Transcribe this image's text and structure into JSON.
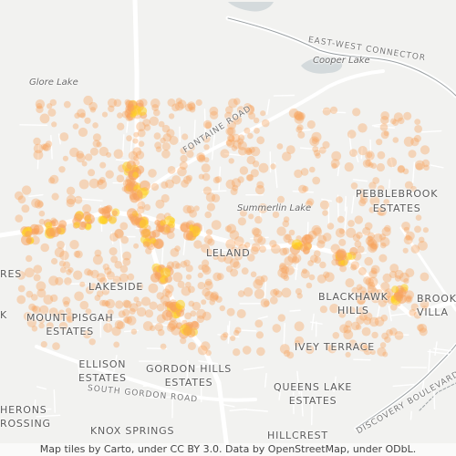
{
  "attribution": "Map tiles by Carto, under CC BY 3.0. Data by OpenStreetMap, under ODbL.",
  "labels": {
    "glore_lake": "Glore Lake",
    "cooper_lake": "Cooper Lake",
    "summerlin_lake": "Summerlin Lake",
    "east_west_connector": "EAST-WEST CONNECTOR",
    "fontaine_road": "FONTAINE ROAD",
    "south_gordon_road": "SOUTH GORDON ROAD",
    "discovery_boulevard": "DISCOVERY BOULEVARD",
    "pebblebrook_estates": [
      "PEBBLEBROOK",
      "ESTATES"
    ],
    "leland": "LELAND",
    "lakeside": "LAKESIDE",
    "mount_pisgah_estates": [
      "MOUNT PISGAH",
      "ESTATES"
    ],
    "blackhawk_hills": [
      "BLACKHAWK",
      "HILLS"
    ],
    "ivey_terrace": "IVEY TERRACE",
    "ellison_estates": [
      "ELLISON",
      "ESTATES"
    ],
    "gordon_hills_estates": [
      "GORDON HILLS",
      "ESTATES"
    ],
    "queens_lake_estates": [
      "QUEENS LAKE",
      "ESTATES"
    ],
    "knox_springs": [
      "KNOX SPRINGS"
    ],
    "hillcrest": "HILLCREST",
    "brooks_village": [
      "BROOKS",
      "VILLA"
    ],
    "herons_crossing": [
      "HERONS",
      "ROSSING"
    ],
    "res_partial": "RES",
    "k_partial": "K"
  },
  "heatmap": {
    "color_low": "#f7a35c",
    "color_high": "#ffd21f"
  }
}
